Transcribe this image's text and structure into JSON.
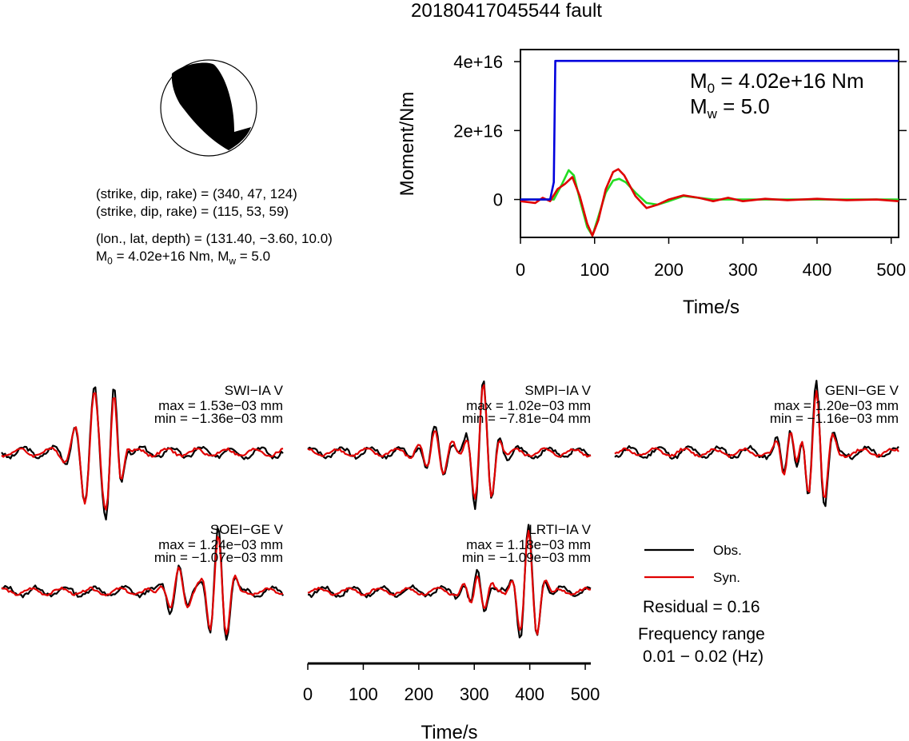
{
  "header": {
    "title": "20180417045544 fault"
  },
  "mechanism": {
    "line1": "(strike, dip, rake) = (340, 47, 124)",
    "line2": "(strike, dip, rake) = (115, 53, 59)",
    "line3": "(lon., lat, depth) = (131.40, −3.60, 10.0)",
    "line4_m0": "M",
    "line4_m0_sub": "0",
    "line4_rest_a": " = 4.02e+16 Nm, M",
    "line4_mw_sub": "w",
    "line4_rest_b": " = 5.0"
  },
  "moment_panel": {
    "ylabel": "Moment/Nm",
    "xlabel": "Time/s",
    "m0_text": " = 4.02e+16 Nm",
    "mw_text": " = 5.0",
    "m_letter": "M",
    "m0_sub": "0",
    "mw_sub": "w",
    "xticks": [
      "0",
      "100",
      "200",
      "300",
      "400",
      "500"
    ],
    "yticks": [
      "4e+16",
      "2e+16",
      "0"
    ]
  },
  "stations": [
    {
      "name": "SWI−IA V",
      "max": "max = 1.53e−03 mm",
      "min": "min = −1.36e−03 mm"
    },
    {
      "name": "SMPI−IA V",
      "max": "max = 1.02e−03 mm",
      "min": "min = −7.81e−04 mm"
    },
    {
      "name": "GENI−GE V",
      "max": "max = 1.20e−03 mm",
      "min": "min = −1.16e−03 mm"
    },
    {
      "name": "SOEI−GE V",
      "max": "max = 1.24e−03 mm",
      "min": "min = −1.07e−03 mm"
    },
    {
      "name": "LRTI−IA V",
      "max": "max = 1.18e−03 mm",
      "min": "min = −1.09e−03 mm"
    }
  ],
  "waveform_axis": {
    "xlabel": "Time/s",
    "xticks": [
      "0",
      "100",
      "200",
      "300",
      "400",
      "500"
    ]
  },
  "legend": {
    "obs": "Obs.",
    "syn": "Syn.",
    "residual": "Residual = 0.16",
    "freq_label": "Frequency range",
    "freq_value": "0.01 − 0.02 (Hz)"
  },
  "colors": {
    "obs": "#000000",
    "syn": "#e00000",
    "moment": "#0000dd",
    "mrf_green": "#22dd22"
  },
  "chart_data": [
    {
      "type": "line",
      "title": "",
      "xlabel": "Time/s",
      "ylabel": "Moment/Nm",
      "xlim": [
        0,
        510
      ],
      "ylim": [
        -1.1e+16,
        4.35e+16
      ],
      "series": [
        {
          "color": "blue",
          "x": [
            0,
            40,
            45,
            47,
            510
          ],
          "y": [
            0,
            0,
            5000000000000000.0,
            4.02e+16,
            4.02e+16
          ]
        },
        {
          "color": "green",
          "x": [
            0,
            45,
            55,
            65,
            72,
            80,
            90,
            97,
            105,
            115,
            125,
            133,
            142,
            155,
            170,
            185,
            200,
            220,
            240,
            260,
            300,
            350,
            400,
            450,
            510
          ],
          "y": [
            0,
            0,
            4000000000000000.0,
            8500000000000000.0,
            7000000000000000.0,
            0.0,
            -8000000000000000.0,
            -1.05e+16,
            -5000000000000000.0,
            2000000000000000.0,
            5500000000000000.0,
            6000000000000000.0,
            5000000000000000.0,
            2000000000000000.0,
            -1000000000000000.0,
            -1500000000000000.0,
            -500000000000000.0,
            1000000000000000.0,
            500000000000000.0,
            0.0,
            0.0,
            0.0,
            0.0,
            0.0,
            0.0
          ]
        },
        {
          "color": "red",
          "x": [
            0,
            20,
            30,
            40,
            50,
            60,
            70,
            80,
            90,
            97,
            105,
            115,
            125,
            132,
            140,
            155,
            170,
            185,
            200,
            220,
            240,
            260,
            280,
            300,
            330,
            360,
            400,
            440,
            480,
            510
          ],
          "y": [
            -500000000000000.0,
            -1000000000000000.0,
            500000000000000.0,
            -500000000000000.0,
            3000000000000000.0,
            4500000000000000.0,
            6500000000000000.0,
            1000000000000000.0,
            -7000000000000000.0,
            -1.05e+16,
            -6000000000000000.0,
            3000000000000000.0,
            8000000000000000.0,
            8800000000000000.0,
            7000000000000000.0,
            1000000000000000.0,
            -2500000000000000.0,
            -1500000000000000.0,
            0.0,
            1200000000000000.0,
            500000000000000.0,
            -500000000000000.0,
            500000000000000.0,
            -500000000000000.0,
            200000000000000.0,
            -200000000000000.0,
            200000000000000.0,
            -200000000000000.0,
            0.0,
            -500000000000000.0
          ]
        }
      ]
    },
    {
      "type": "line",
      "xlabel": "Time/s",
      "xlim": [
        0,
        510
      ],
      "stations": [
        "SWI−IA V",
        "SMPI−IA V",
        "GENI−GE V",
        "SOEI−GE V",
        "LRTI−IA V"
      ]
    }
  ]
}
